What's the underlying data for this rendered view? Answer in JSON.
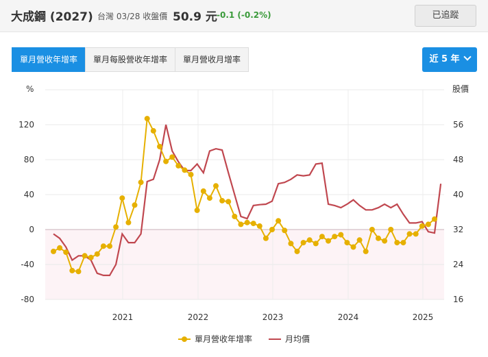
{
  "header": {
    "stock_name": "大成鋼 (2027)",
    "market_date": "台灣 03/28 收盤價",
    "price": "50.9 元",
    "change": "-0.1 (-0.2%)",
    "change_color": "#3a9a3a",
    "follow_label": "已追蹤"
  },
  "tabs": [
    {
      "label": "單月營收年增率",
      "active": true
    },
    {
      "label": "單月每股營收年增率",
      "active": false
    },
    {
      "label": "單月營收月增率",
      "active": false
    }
  ],
  "range": {
    "label": "近 5 年",
    "icon": "chevron-down-icon"
  },
  "colors": {
    "accent": "#1a8fe3",
    "yoy": "#e6b000",
    "price": "#c0474f",
    "negative_fill": "#fdf3f6"
  },
  "chart_data": {
    "type": "line",
    "y_left_label": "%",
    "y_right_label": "股價",
    "y_left_ticks": [
      "120",
      "80",
      "40",
      "0",
      "-40",
      "-80"
    ],
    "y_right_ticks": [
      "56",
      "48",
      "40",
      "32",
      "24",
      "16"
    ],
    "x_ticks": [
      "2021",
      "2022",
      "2023",
      "2024",
      "2025"
    ],
    "y_left_range": [
      -80,
      160
    ],
    "y_right_range": [
      16,
      64
    ],
    "legend_placement": "bottom-center",
    "series": [
      {
        "name": "單月營收年增率",
        "color": "#e6b000",
        "marker": "circle",
        "axis": "left",
        "values": [
          -25,
          -21,
          -26,
          -47,
          -48,
          -30,
          -32,
          -28,
          -19,
          -19,
          3,
          36,
          8,
          28,
          54,
          127,
          113,
          95,
          78,
          83,
          73,
          68,
          63,
          22,
          44,
          36,
          50,
          33,
          32,
          15,
          6,
          8,
          7,
          4,
          -10,
          0,
          10,
          -1,
          -16,
          -25,
          -15,
          -12,
          -16,
          -8,
          -13,
          -8,
          -6,
          -15,
          -20,
          -12,
          -25,
          0,
          -10,
          -13,
          0,
          -15,
          -15,
          -5,
          -5,
          4,
          6,
          12
        ]
      },
      {
        "name": "月均價",
        "color": "#c0474f",
        "marker": "none",
        "axis": "right",
        "values": [
          31,
          30,
          28,
          25,
          26,
          26,
          25,
          22,
          21.5,
          21.5,
          24,
          31,
          29,
          29,
          31,
          43,
          43.5,
          48,
          56,
          50,
          47.5,
          45.5,
          45.5,
          47,
          45,
          50,
          50.5,
          50.2,
          45,
          40,
          35,
          34.5,
          37.5,
          37.7,
          37.8,
          38.5,
          42.5,
          42.8,
          43.5,
          44.5,
          44.3,
          44.5,
          47,
          47.2,
          37.8,
          37.5,
          37,
          37.8,
          38.8,
          37.5,
          36.5,
          36.5,
          37,
          37.8,
          37,
          37.8,
          35.5,
          33.5,
          33.5,
          33.8,
          31.5,
          31.2,
          42.5
        ]
      }
    ]
  }
}
